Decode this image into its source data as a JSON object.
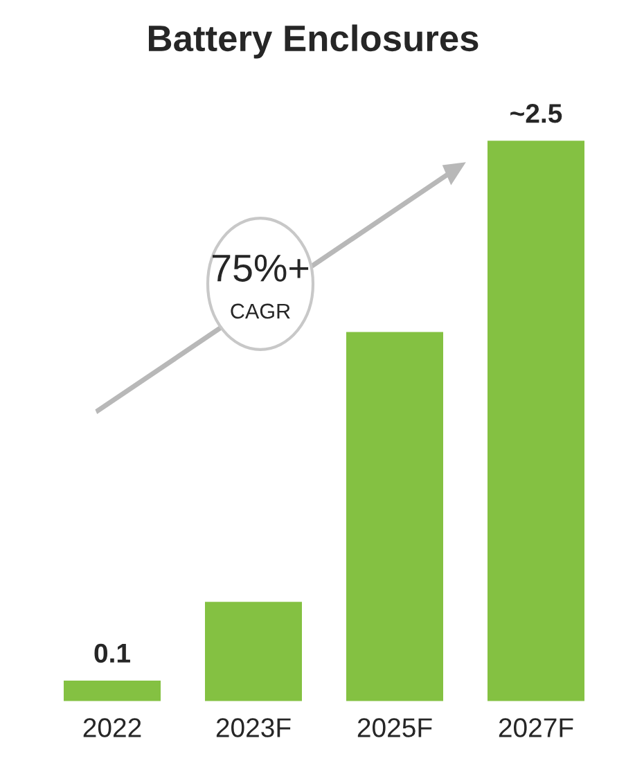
{
  "chart_data": {
    "type": "bar",
    "title": "Battery Enclosures",
    "categories": [
      "2022",
      "2023F",
      "2025F",
      "2027F"
    ],
    "values": [
      0.1,
      0.45,
      1.65,
      2.5
    ],
    "value_labels": [
      "0.1",
      null,
      null,
      "~2.5"
    ],
    "color": "#84c142",
    "annotations": [
      "75%+",
      "CAGR"
    ],
    "grid": false,
    "legend": false
  }
}
